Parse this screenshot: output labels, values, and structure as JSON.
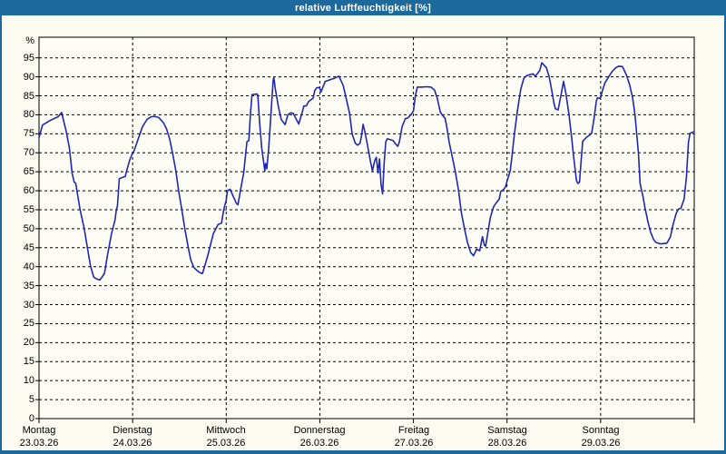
{
  "window": {
    "title": "relative Luftfeuchtigkeit [%]"
  },
  "colors": {
    "frame_blue": "#1c699e",
    "title_text": "#ffffff",
    "line_blue": "#1e28b2",
    "grid_black": "#000000",
    "plot_bg": "#fdfdf6"
  },
  "chart_data": {
    "type": "line",
    "title": "relative Luftfeuchtigkeit [%]",
    "unit_label": "%",
    "legend_position": "none",
    "grid": "dashed horizontal every 5%, dashed vertical at day boundaries",
    "y_axis": {
      "min": 0,
      "tick_max": 95,
      "tick_step": 5,
      "ylim": [
        0,
        100
      ]
    },
    "x_total_hours": 168,
    "days": [
      {
        "name": "Montag",
        "date": "23.03.26"
      },
      {
        "name": "Dienstag",
        "date": "24.03.26"
      },
      {
        "name": "Mittwoch",
        "date": "25.03.26"
      },
      {
        "name": "Donnerstag",
        "date": "26.03.26"
      },
      {
        "name": "Freitag",
        "date": "27.03.26"
      },
      {
        "name": "Samstag",
        "date": "28.03.26"
      },
      {
        "name": "Sonntag",
        "date": "29.03.26"
      }
    ],
    "series": [
      {
        "name": "relative Luftfeuchtigkeit",
        "x_unit": "hours since Montag 00:00",
        "points": [
          [
            0,
            74
          ],
          [
            0.9,
            77.3
          ],
          [
            3,
            78.6
          ],
          [
            4.9,
            79.5
          ],
          [
            5.8,
            80.6
          ],
          [
            7,
            75.5
          ],
          [
            7.8,
            71.2
          ],
          [
            8.5,
            64.6
          ],
          [
            9,
            62.3
          ],
          [
            9.4,
            62
          ],
          [
            10.5,
            55.2
          ],
          [
            11.6,
            49.9
          ],
          [
            12.4,
            45
          ],
          [
            13.2,
            40.2
          ],
          [
            14,
            37.3
          ],
          [
            14.7,
            36.8
          ],
          [
            15.6,
            36.5
          ],
          [
            16.3,
            37.5
          ],
          [
            16.8,
            38.3
          ],
          [
            17.5,
            42.7
          ],
          [
            18.6,
            48.7
          ],
          [
            19.5,
            52.4
          ],
          [
            19.8,
            54.8
          ],
          [
            20.1,
            56
          ],
          [
            20.6,
            63.2
          ],
          [
            22.1,
            63.8
          ],
          [
            22.5,
            65.4
          ],
          [
            23.3,
            68.2
          ],
          [
            23.9,
            69.7
          ],
          [
            24.2,
            70
          ],
          [
            25.4,
            73.6
          ],
          [
            26.5,
            76.8
          ],
          [
            27.7,
            78.8
          ],
          [
            28.6,
            79.4
          ],
          [
            29.5,
            79.6
          ],
          [
            30.7,
            79.3
          ],
          [
            31.9,
            77.9
          ],
          [
            32.7,
            76.3
          ],
          [
            33.5,
            73.6
          ],
          [
            34.3,
            69.6
          ],
          [
            35.1,
            65.2
          ],
          [
            35.8,
            59.9
          ],
          [
            36.6,
            55.1
          ],
          [
            37.4,
            49.9
          ],
          [
            38.2,
            45.4
          ],
          [
            38.9,
            41.8
          ],
          [
            39.7,
            39.8
          ],
          [
            40.5,
            39
          ],
          [
            41.3,
            38.4
          ],
          [
            41.9,
            38.2
          ],
          [
            42.3,
            39.5
          ],
          [
            43.2,
            42.7
          ],
          [
            44,
            45.9
          ],
          [
            44.7,
            48.7
          ],
          [
            45.9,
            51.1
          ],
          [
            46.8,
            51.5
          ],
          [
            47.4,
            55.2
          ],
          [
            48,
            57.5
          ],
          [
            48.3,
            60
          ],
          [
            49,
            60.4
          ],
          [
            49.8,
            58.5
          ],
          [
            50.6,
            56.7
          ],
          [
            51,
            56.3
          ],
          [
            51.7,
            60.4
          ],
          [
            52.5,
            64.8
          ],
          [
            53.3,
            72.9
          ],
          [
            53.8,
            73.2
          ],
          [
            54.2,
            80
          ],
          [
            54.6,
            85.3
          ],
          [
            55.9,
            85.5
          ],
          [
            56.1,
            85.2
          ],
          [
            56.6,
            77.6
          ],
          [
            57.1,
            71.2
          ],
          [
            57.9,
            65.2
          ],
          [
            58.1,
            67.2
          ],
          [
            58.4,
            65.8
          ],
          [
            58.9,
            71.2
          ],
          [
            59.4,
            79.2
          ],
          [
            60,
            88.8
          ],
          [
            60.2,
            89.9
          ],
          [
            60.6,
            86.8
          ],
          [
            61.4,
            82
          ],
          [
            62.1,
            78.8
          ],
          [
            63.1,
            77.4
          ],
          [
            63.8,
            80
          ],
          [
            64.5,
            80.5
          ],
          [
            65.2,
            80.4
          ],
          [
            66,
            78.8
          ],
          [
            66.6,
            77.6
          ],
          [
            67.4,
            80.4
          ],
          [
            67.9,
            82.3
          ],
          [
            68.6,
            82.4
          ],
          [
            69.1,
            83.5
          ],
          [
            70.3,
            84.4
          ],
          [
            70.7,
            86.4
          ],
          [
            71.2,
            87.1
          ],
          [
            71.9,
            87.2
          ],
          [
            72.3,
            86
          ],
          [
            73.4,
            88.8
          ],
          [
            74.5,
            89.2
          ],
          [
            75.7,
            89.6
          ],
          [
            76.9,
            90.2
          ],
          [
            78,
            87.7
          ],
          [
            78.8,
            84.1
          ],
          [
            79.6,
            80.5
          ],
          [
            80.3,
            74.9
          ],
          [
            81.1,
            72.5
          ],
          [
            81.7,
            72
          ],
          [
            82.3,
            72.5
          ],
          [
            82.7,
            74.5
          ],
          [
            83.1,
            77.5
          ],
          [
            83.5,
            75.7
          ],
          [
            84.2,
            72.1
          ],
          [
            85,
            67.6
          ],
          [
            85.5,
            65.3
          ],
          [
            86.1,
            68
          ],
          [
            86.5,
            68.8
          ],
          [
            86.9,
            64.7
          ],
          [
            87.3,
            68.4
          ],
          [
            87.7,
            61.6
          ],
          [
            88.1,
            59.2
          ],
          [
            88.5,
            67.2
          ],
          [
            88.9,
            72.9
          ],
          [
            89.3,
            73.7
          ],
          [
            90.8,
            73.2
          ],
          [
            91.6,
            72.1
          ],
          [
            92,
            71.7
          ],
          [
            92.4,
            72.9
          ],
          [
            93.1,
            76.9
          ],
          [
            93.9,
            78.9
          ],
          [
            94.7,
            79.3
          ],
          [
            95.5,
            80.2
          ],
          [
            96,
            81
          ],
          [
            96.5,
            85
          ],
          [
            97,
            87.3
          ],
          [
            98,
            87.3
          ],
          [
            99.3,
            87.4
          ],
          [
            100.5,
            87.3
          ],
          [
            101.4,
            86.5
          ],
          [
            102.1,
            84.4
          ],
          [
            102.9,
            80.7
          ],
          [
            103.5,
            79.8
          ],
          [
            104.1,
            79.1
          ],
          [
            104.5,
            77.1
          ],
          [
            105.2,
            72.6
          ],
          [
            106,
            68.8
          ],
          [
            106.8,
            64.7
          ],
          [
            107.6,
            59.9
          ],
          [
            108.3,
            54.2
          ],
          [
            109.1,
            49.9
          ],
          [
            109.9,
            46.2
          ],
          [
            110.7,
            43.7
          ],
          [
            111.4,
            42.9
          ],
          [
            112.2,
            44.6
          ],
          [
            113,
            44.2
          ],
          [
            113.7,
            47.9
          ],
          [
            114.2,
            45.6
          ],
          [
            114.5,
            45.4
          ],
          [
            114.9,
            47.8
          ],
          [
            115.7,
            52.8
          ],
          [
            116.5,
            55.7
          ],
          [
            117.2,
            56.8
          ],
          [
            118,
            57.8
          ],
          [
            118.4,
            59.8
          ],
          [
            119.1,
            60.3
          ],
          [
            119.6,
            61
          ],
          [
            120,
            62.5
          ],
          [
            120.8,
            65.2
          ],
          [
            121.2,
            68.5
          ],
          [
            121.9,
            75.1
          ],
          [
            122.7,
            81.3
          ],
          [
            123.5,
            86.7
          ],
          [
            124.3,
            89.6
          ],
          [
            125,
            90.3
          ],
          [
            126.6,
            90.8
          ],
          [
            127.3,
            90.2
          ],
          [
            128.4,
            91.7
          ],
          [
            128.9,
            93.7
          ],
          [
            130.1,
            92.4
          ],
          [
            130.8,
            90
          ],
          [
            131.2,
            88
          ],
          [
            131.6,
            85.6
          ],
          [
            132,
            83.2
          ],
          [
            132.4,
            81.6
          ],
          [
            133.1,
            81.3
          ],
          [
            133.9,
            85.6
          ],
          [
            134.5,
            88.8
          ],
          [
            135.1,
            85.6
          ],
          [
            135.9,
            80
          ],
          [
            136.6,
            73.6
          ],
          [
            137,
            69.6
          ],
          [
            137.8,
            62.7
          ],
          [
            138.2,
            61.9
          ],
          [
            138.6,
            62.3
          ],
          [
            139,
            68
          ],
          [
            139.4,
            73
          ],
          [
            140.3,
            74
          ],
          [
            141.3,
            74.8
          ],
          [
            141.7,
            75.2
          ],
          [
            142.3,
            79
          ],
          [
            142.9,
            83.6
          ],
          [
            143.2,
            84.5
          ],
          [
            143.8,
            84.3
          ],
          [
            144,
            84.6
          ],
          [
            144.5,
            86.5
          ],
          [
            145.1,
            88.4
          ],
          [
            146.3,
            90.4
          ],
          [
            147.1,
            91.6
          ],
          [
            147.9,
            92.4
          ],
          [
            148.6,
            92.8
          ],
          [
            149.6,
            92.7
          ],
          [
            150.6,
            90.5
          ],
          [
            151.4,
            88
          ],
          [
            152.2,
            84.5
          ],
          [
            152.8,
            80
          ],
          [
            153.2,
            75.5
          ],
          [
            153.7,
            70
          ],
          [
            154.1,
            62
          ],
          [
            154.4,
            60.5
          ],
          [
            154.9,
            58.3
          ],
          [
            155.3,
            55.9
          ],
          [
            156.1,
            51.9
          ],
          [
            156.8,
            49.1
          ],
          [
            157.6,
            47.1
          ],
          [
            158.2,
            46.4
          ],
          [
            159.4,
            46
          ],
          [
            161,
            46.2
          ],
          [
            161.9,
            47.9
          ],
          [
            162.6,
            51.2
          ],
          [
            163.4,
            54.1
          ],
          [
            164,
            55.2
          ],
          [
            164.6,
            55.4
          ],
          [
            165.4,
            57.8
          ],
          [
            166,
            63.6
          ],
          [
            166.5,
            72.7
          ],
          [
            166.9,
            75.1
          ],
          [
            167.8,
            75.5
          ],
          [
            168,
            75.6
          ]
        ]
      }
    ]
  }
}
